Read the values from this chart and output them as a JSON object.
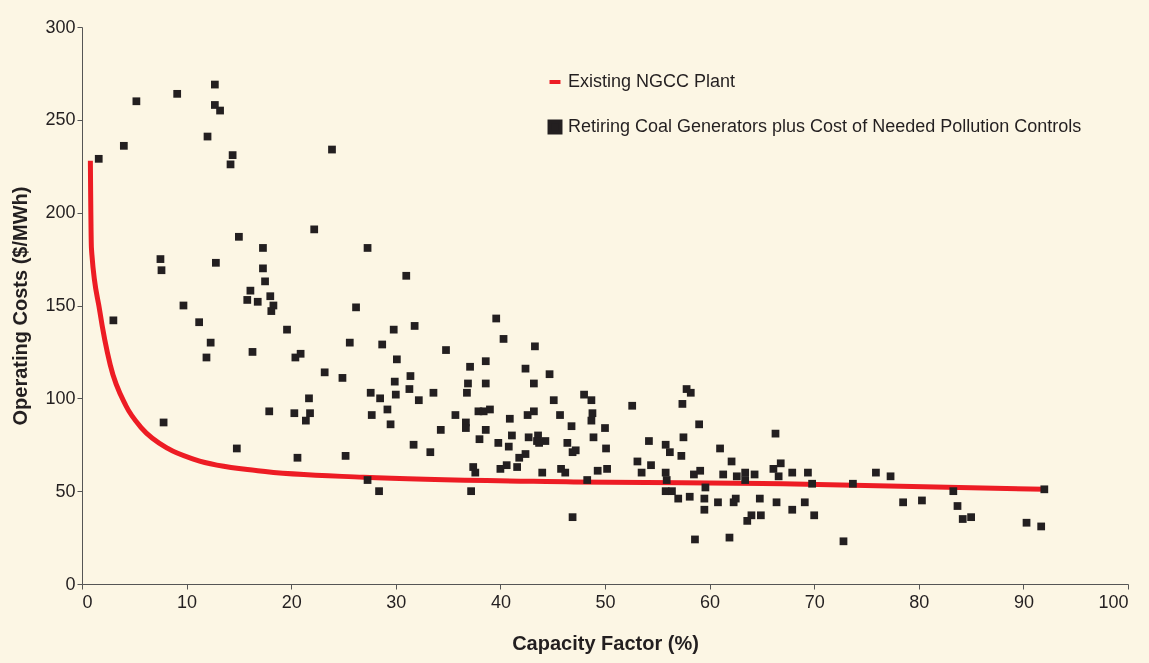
{
  "chart_data": {
    "type": "scatter",
    "xlabel": "Capacity Factor (%)",
    "ylabel": "Operating Costs ($/MWh)",
    "xlim": [
      0,
      100
    ],
    "xticks": [
      0,
      10,
      20,
      30,
      40,
      50,
      60,
      70,
      80,
      90,
      100
    ],
    "ylim": [
      0,
      300
    ],
    "yticks": [
      0,
      50,
      100,
      150,
      200,
      250,
      300
    ],
    "grid": false,
    "legend": "top right",
    "series": [
      {
        "name": "Existing NGCC Plant",
        "type": "line",
        "marker": "none",
        "line_style": "solid",
        "color": "#ed1c24",
        "x": [
          0.8,
          0.9,
          1.7,
          2.7,
          4.2,
          5.7,
          8.2,
          10.8,
          16.8,
          26.9,
          47,
          67,
          92
        ],
        "values": [
          228,
          181,
          147,
          118,
          96,
          84,
          73,
          67,
          61,
          57.5,
          55,
          54,
          51
        ]
      },
      {
        "name": "Retiring Coal Generators plus Cost of Needed Pollution Controls",
        "marker": "square",
        "color": "#231f20",
        "x": [
          1.6,
          4.0,
          5.2,
          9.1,
          12.7,
          12.7,
          13.2,
          12.0,
          14.4,
          14.2,
          23.9,
          22.2,
          15.0,
          17.3,
          7.5,
          7.6,
          12.8,
          17.3,
          17.5,
          16.1,
          15.8,
          16.8,
          18.0,
          18.3,
          18.1,
          9.7,
          3.0,
          11.2,
          19.6,
          25.6,
          12.3,
          11.9,
          16.3,
          20.4,
          20.9,
          23.2,
          24.9,
          21.7,
          17.9,
          20.3,
          21.8,
          21.4,
          7.8,
          14.8,
          20.6,
          25.2,
          27.3,
          31.0,
          26.2,
          29.8,
          31.8,
          28.7,
          34.8,
          39.6,
          40.3,
          43.3,
          30.1,
          38.6,
          37.1,
          29.9,
          31.4,
          31.3,
          36.9,
          38.6,
          42.4,
          44.7,
          43.2,
          27.6,
          28.5,
          30.0,
          32.2,
          33.6,
          36.8,
          45.1,
          48.0,
          48.7,
          27.7,
          29.2,
          29.5,
          35.7,
          36.7,
          36.7,
          37.9,
          38.4,
          39.0,
          38.6,
          40.9,
          42.6,
          43.2,
          45.7,
          46.8,
          48.8,
          48.7,
          50.0,
          34.3,
          31.7,
          33.3,
          38.0,
          39.8,
          41.1,
          40.8,
          42.7,
          43.6,
          43.5,
          44.3,
          43.7,
          46.4,
          48.9,
          46.9,
          47.2,
          50.1,
          42.4,
          41.8,
          37.4,
          37.6,
          40.6,
          40.0,
          41.6,
          44.0,
          45.8,
          46.2,
          49.3,
          50.2,
          27.3,
          48.3,
          28.4,
          37.2,
          46.9,
          57.8,
          58.2,
          52.6,
          57.4,
          59.0,
          57.5,
          54.2,
          55.8,
          56.2,
          57.3,
          53.1,
          54.4,
          53.5,
          55.8,
          55.9,
          58.5,
          59.1,
          61.0,
          62.1,
          61.3,
          62.6,
          63.4,
          63.4,
          64.3,
          66.3,
          66.1,
          66.8,
          66.6,
          67.9,
          69.4,
          69.8,
          73.7,
          75.9,
          59.6,
          55.8,
          56.4,
          57.0,
          58.1,
          59.5,
          59.5,
          60.8,
          62.3,
          62.5,
          64.8,
          66.4,
          69.1,
          67.9,
          70.0,
          64.0,
          64.9,
          63.6,
          58.6,
          61.9,
          72.8,
          77.3,
          83.3,
          92.0,
          78.5,
          80.3,
          83.7,
          84.2,
          85.0,
          90.3,
          91.7
        ],
        "values": [
          229,
          236,
          260,
          264,
          269,
          258,
          255,
          241,
          231,
          226,
          234,
          191,
          187,
          181,
          175,
          169,
          173,
          170,
          163,
          158,
          153,
          152,
          155,
          150,
          147,
          150,
          142,
          141,
          137,
          130,
          130,
          122,
          125,
          122,
          124,
          114,
          111,
          100,
          93,
          92,
          92,
          88,
          87,
          73,
          68,
          69,
          181,
          166,
          149,
          137,
          139,
          129,
          126,
          143,
          132,
          128,
          121,
          120,
          117,
          109,
          112,
          105,
          108,
          108,
          116,
          113,
          108,
          103,
          100,
          102,
          99,
          103,
          103,
          99,
          102,
          99,
          91,
          94,
          86,
          91,
          87,
          84,
          93,
          93,
          94,
          83,
          89,
          91,
          93,
          91,
          85,
          92,
          88,
          84,
          83,
          75,
          71,
          78,
          76,
          80,
          74,
          79,
          80,
          77,
          77,
          76,
          76,
          79,
          71,
          72,
          73,
          70,
          68,
          63,
          60,
          64,
          62,
          63,
          60,
          62,
          60,
          61,
          62,
          56,
          56,
          50,
          50,
          36,
          105,
          103,
          96,
          97,
          86,
          79,
          77,
          75,
          71,
          69,
          66,
          64,
          60,
          60,
          56,
          59,
          61,
          73,
          66,
          59,
          58,
          60,
          56,
          59,
          81,
          62,
          65,
          58,
          60,
          60,
          54,
          54,
          60,
          52,
          50,
          50,
          46,
          47,
          46,
          40,
          44,
          44,
          46,
          46,
          44,
          44,
          40,
          37,
          37,
          37,
          34,
          24,
          25,
          23,
          58,
          50,
          51,
          44,
          45,
          42,
          35,
          36,
          33,
          31
        ]
      }
    ]
  }
}
